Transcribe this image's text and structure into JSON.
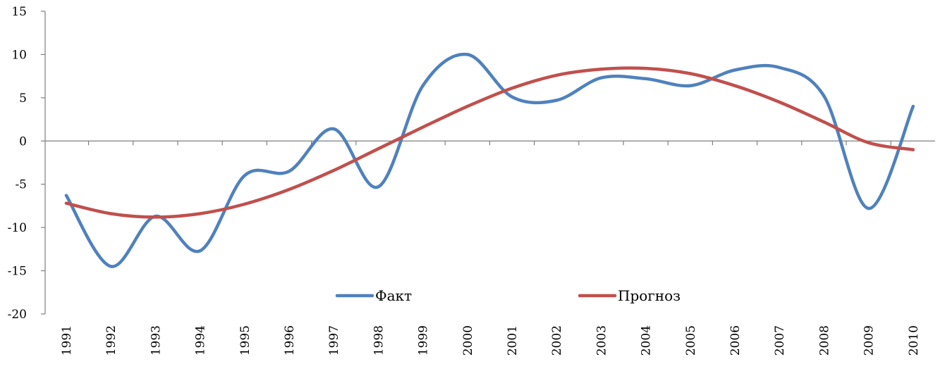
{
  "chart_data": {
    "type": "line",
    "title": "",
    "xlabel": "",
    "ylabel": "",
    "categories": [
      "1991",
      "1992",
      "1993",
      "1994",
      "1995",
      "1996",
      "1997",
      "1998",
      "1999",
      "2000",
      "2001",
      "2002",
      "2003",
      "2004",
      "2005",
      "2006",
      "2007",
      "2008",
      "2009",
      "2010"
    ],
    "ylim": [
      -20,
      15
    ],
    "yticks": [
      "15",
      "10",
      "5",
      "0",
      "-5",
      "-10",
      "-15",
      "-20"
    ],
    "grid": false,
    "legend_position": "bottom-center",
    "series": [
      {
        "name": "Факт",
        "color": "#4f81bd",
        "values": [
          -6.3,
          -14.5,
          -8.7,
          -12.7,
          -4.0,
          -3.5,
          1.4,
          -5.3,
          6.4,
          10.0,
          5.1,
          4.7,
          7.3,
          7.2,
          6.4,
          8.2,
          8.5,
          5.2,
          -7.8,
          4.0
        ]
      },
      {
        "name": "Прогноз",
        "color": "#c0504d",
        "values": [
          -7.2,
          -8.4,
          -8.8,
          -8.4,
          -7.3,
          -5.6,
          -3.4,
          -0.9,
          1.6,
          4.0,
          6.1,
          7.6,
          8.3,
          8.4,
          7.8,
          6.4,
          4.5,
          2.2,
          -0.2,
          -1.0
        ]
      }
    ]
  }
}
